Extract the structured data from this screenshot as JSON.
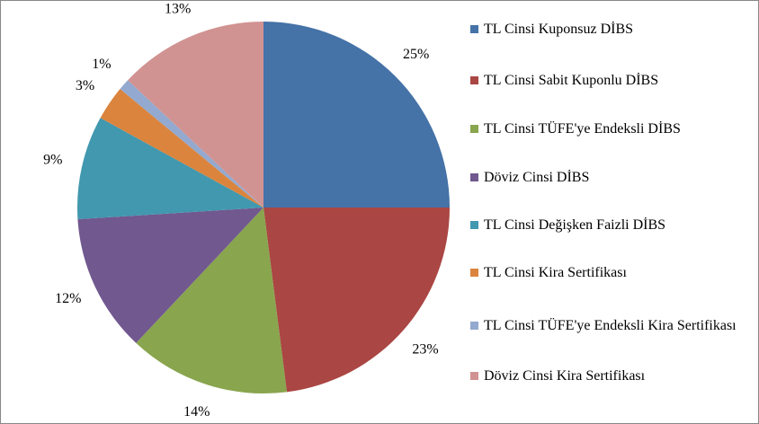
{
  "chart_data": {
    "type": "pie",
    "categories": [
      "TL Cinsi Kuponsuz DİBS",
      "TL Cinsi Sabit Kuponlu DİBS",
      "TL Cinsi TÜFE'ye Endeksli DİBS",
      "Döviz Cinsi DİBS",
      "TL Cinsi Değişken Faizli DİBS",
      "TL Cinsi Kira Sertifikası",
      "TL Cinsi TÜFE'ye Endeksli Kira Sertifikası",
      "Döviz Cinsi Kira Sertifikası"
    ],
    "values": [
      25,
      23,
      14,
      12,
      9,
      3,
      1,
      13
    ],
    "value_labels": [
      "25%",
      "23%",
      "14%",
      "12%",
      "9%",
      "3%",
      "1%",
      "13%"
    ],
    "colors": [
      "#4572a7",
      "#aa4643",
      "#89a54e",
      "#71588f",
      "#4198af",
      "#db843d",
      "#93a9cf",
      "#d19392"
    ],
    "legend": "right"
  }
}
